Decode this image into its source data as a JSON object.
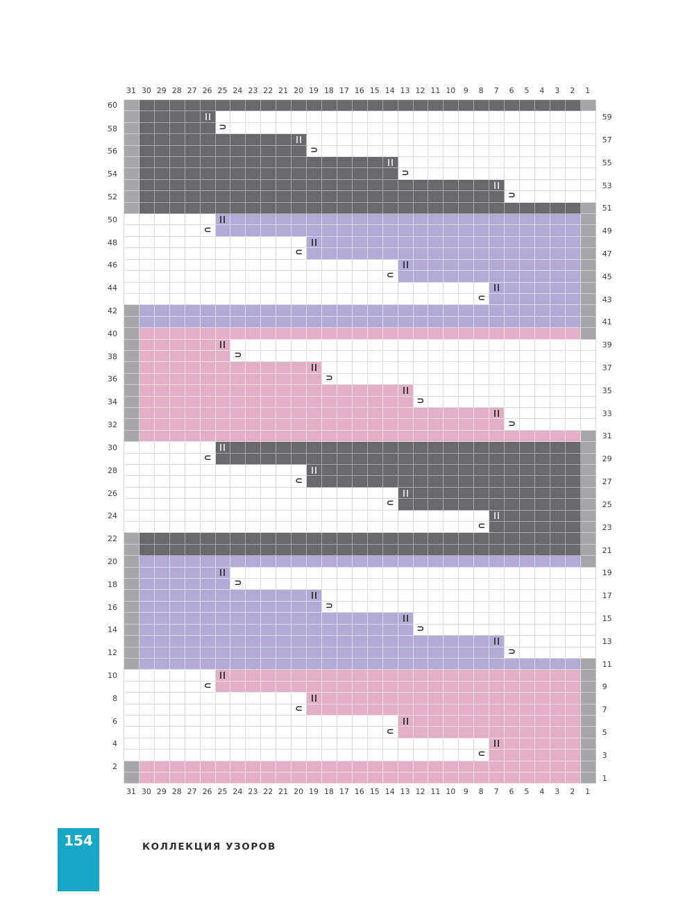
{
  "footer": {
    "page_number": "154",
    "title": "КОЛЛЕКЦИЯ УЗОРОВ",
    "accent_color": "#18a7c5"
  },
  "chart": {
    "type": "knitting-chart",
    "columns": 31,
    "rows_count": 60,
    "column_labels": [
      "31",
      "30",
      "29",
      "28",
      "27",
      "26",
      "25",
      "24",
      "23",
      "22",
      "21",
      "20",
      "19",
      "18",
      "17",
      "16",
      "15",
      "14",
      "13",
      "12",
      "11",
      "10",
      "9",
      "8",
      "7",
      "6",
      "5",
      "4",
      "3",
      "2",
      "1"
    ],
    "colors": {
      "dark": "#69686c",
      "purple": "#b4aad6",
      "pink": "#e1b0c6",
      "edge_gray": "#a7a7aa",
      "empty": "#ffffff",
      "symbol_on_dark": "#d7d7d9",
      "symbol_on_light": "#3a3a3c"
    },
    "cell_legend": {
      "E": "edge stitch (gray)",
      "D": "dark stitch",
      "P": "purple stitch",
      "K": "pink stitch",
      "d": "dark stitch with double-bar turn mark",
      "p": "purple stitch with double-bar turn mark",
      "k": "pink stitch with double-bar turn mark",
      ">": "empty cell with wrap symbol opening left",
      "<": "empty cell with wrap symbol opening right",
      ".": "empty cell"
    },
    "symbols": {
      "double_bar": "||",
      "wrap_open_left": "⊃",
      "wrap_open_right": "⊂"
    },
    "rows": [
      {
        "left": "60",
        "right": "",
        "cells": "EDDDDDDDDDDDDDDDDDDDDDDDDDDDDDE"
      },
      {
        "left": "",
        "right": "59",
        "cells": "EDDDDd........................."
      },
      {
        "left": "58",
        "right": "",
        "cells": "EDDDDD>........................"
      },
      {
        "left": "",
        "right": "57",
        "cells": "EDDDDDDDDDDd..................."
      },
      {
        "left": "56",
        "right": "",
        "cells": "EDDDDDDDDDDD>.................."
      },
      {
        "left": "",
        "right": "55",
        "cells": "EDDDDDDDDDDDDDDDDd............."
      },
      {
        "left": "54",
        "right": "",
        "cells": "EDDDDDDDDDDDDDDDDD>............"
      },
      {
        "left": "",
        "right": "53",
        "cells": "EDDDDDDDDDDDDDDDDDDDDDDDd......"
      },
      {
        "left": "52",
        "right": "",
        "cells": "EDDDDDDDDDDDDDDDDDDDDDDDD>....."
      },
      {
        "left": "",
        "right": "51",
        "cells": "EDDDDDDDDDDDDDDDDDDDDDDDDDDDDDE"
      },
      {
        "left": "50",
        "right": "",
        "cells": "......pPPPPPPPPPPPPPPPPPPPPPPPE"
      },
      {
        "left": "",
        "right": "49",
        "cells": ".....<PPPPPPPPPPPPPPPPPPPPPPPPE"
      },
      {
        "left": "48",
        "right": "",
        "cells": "............pPPPPPPPPPPPPPPPPPE"
      },
      {
        "left": "",
        "right": "47",
        "cells": "...........<PPPPPPPPPPPPPPPPPPE"
      },
      {
        "left": "46",
        "right": "",
        "cells": "..................pPPPPPPPPPPPE"
      },
      {
        "left": "",
        "right": "45",
        "cells": ".................<PPPPPPPPPPPPE"
      },
      {
        "left": "44",
        "right": "",
        "cells": "........................pPPPPPE"
      },
      {
        "left": "",
        "right": "43",
        "cells": ".......................<PPPPPPE"
      },
      {
        "left": "42",
        "right": "",
        "cells": "EPPPPPPPPPPPPPPPPPPPPPPPPPPPPPE"
      },
      {
        "left": "",
        "right": "41",
        "cells": "EPPPPPPPPPPPPPPPPPPPPPPPPPPPPPE"
      },
      {
        "left": "40",
        "right": "",
        "cells": "EKKKKKKKKKKKKKKKKKKKKKKKKKKKKKE"
      },
      {
        "left": "",
        "right": "39",
        "cells": "EKKKKKk........................"
      },
      {
        "left": "38",
        "right": "",
        "cells": "EKKKKKK>......................."
      },
      {
        "left": "",
        "right": "37",
        "cells": "EKKKKKKKKKKKk.................."
      },
      {
        "left": "36",
        "right": "",
        "cells": "EKKKKKKKKKKKK>................."
      },
      {
        "left": "",
        "right": "35",
        "cells": "EKKKKKKKKKKKKKKKKKk............"
      },
      {
        "left": "34",
        "right": "",
        "cells": "EKKKKKKKKKKKKKKKKKK>..........."
      },
      {
        "left": "",
        "right": "33",
        "cells": "EKKKKKKKKKKKKKKKKKKKKKKKk......"
      },
      {
        "left": "32",
        "right": "",
        "cells": "EKKKKKKKKKKKKKKKKKKKKKKKK>....."
      },
      {
        "left": "",
        "right": "31",
        "cells": "EKKKKKKKKKKKKKKKKKKKKKKKKKKKKKE"
      },
      {
        "left": "30",
        "right": "",
        "cells": "......dDDDDDDDDDDDDDDDDDDDDDDDE"
      },
      {
        "left": "",
        "right": "29",
        "cells": ".....<DDDDDDDDDDDDDDDDDDDDDDDDE"
      },
      {
        "left": "28",
        "right": "",
        "cells": "............dDDDDDDDDDDDDDDDDDE"
      },
      {
        "left": "",
        "right": "27",
        "cells": "...........<DDDDDDDDDDDDDDDDDDE"
      },
      {
        "left": "26",
        "right": "",
        "cells": "..................dDDDDDDDDDDDE"
      },
      {
        "left": "",
        "right": "25",
        "cells": ".................<DDDDDDDDDDDDE"
      },
      {
        "left": "24",
        "right": "",
        "cells": "........................dDDDDDE"
      },
      {
        "left": "",
        "right": "23",
        "cells": ".......................<DDDDDDE"
      },
      {
        "left": "22",
        "right": "",
        "cells": "EDDDDDDDDDDDDDDDDDDDDDDDDDDDDDE"
      },
      {
        "left": "",
        "right": "21",
        "cells": "EDDDDDDDDDDDDDDDDDDDDDDDDDDDDDE"
      },
      {
        "left": "20",
        "right": "",
        "cells": "EPPPPPPPPPPPPPPPPPPPPPPPPPPPPPE"
      },
      {
        "left": "",
        "right": "19",
        "cells": "EPPPPPp........................"
      },
      {
        "left": "18",
        "right": "",
        "cells": "EPPPPPP>......................."
      },
      {
        "left": "",
        "right": "17",
        "cells": "EPPPPPPPPPPPp.................."
      },
      {
        "left": "16",
        "right": "",
        "cells": "EPPPPPPPPPPPP>................."
      },
      {
        "left": "",
        "right": "15",
        "cells": "EPPPPPPPPPPPPPPPPPp............"
      },
      {
        "left": "14",
        "right": "",
        "cells": "EPPPPPPPPPPPPPPPPPP>..........."
      },
      {
        "left": "",
        "right": "13",
        "cells": "EPPPPPPPPPPPPPPPPPPPPPPPp......"
      },
      {
        "left": "12",
        "right": "",
        "cells": "EPPPPPPPPPPPPPPPPPPPPPPPP>....."
      },
      {
        "left": "",
        "right": "11",
        "cells": "EPPPPPPPPPPPPPPPPPPPPPPPPPPPPPE"
      },
      {
        "left": "10",
        "right": "",
        "cells": "......kKKKKKKKKKKKKKKKKKKKKKKKE"
      },
      {
        "left": "",
        "right": "9",
        "cells": ".....<KKKKKKKKKKKKKKKKKKKKKKKKE"
      },
      {
        "left": "8",
        "right": "",
        "cells": "............kKKKKKKKKKKKKKKKKKE"
      },
      {
        "left": "",
        "right": "7",
        "cells": "...........<KKKKKKKKKKKKKKKKKKE"
      },
      {
        "left": "6",
        "right": "",
        "cells": "..................kKKKKKKKKKKKE"
      },
      {
        "left": "",
        "right": "5",
        "cells": ".................<KKKKKKKKKKKKE"
      },
      {
        "left": "4",
        "right": "",
        "cells": "........................kKKKKKE"
      },
      {
        "left": "",
        "right": "3",
        "cells": ".......................<KKKKKKE"
      },
      {
        "left": "2",
        "right": "",
        "cells": "EKKKKKKKKKKKKKKKKKKKKKKKKKKKKKE"
      },
      {
        "left": "",
        "right": "1",
        "cells": "EKKKKKKKKKKKKKKKKKKKKKKKKKKKKKE"
      }
    ]
  }
}
